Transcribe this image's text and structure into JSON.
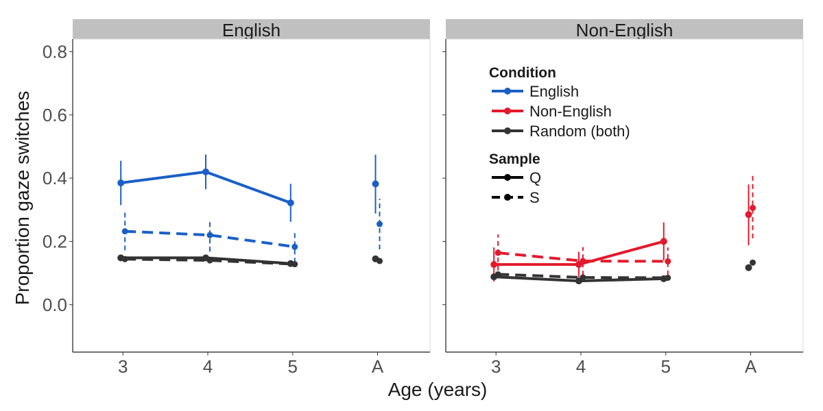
{
  "chart_data": {
    "type": "line",
    "xlabel": "Age (years)",
    "ylabel": "Proportion gaze switches",
    "x_categories": [
      "3",
      "4",
      "5",
      "A"
    ],
    "y_ticks": [
      "0.0",
      "0.2",
      "0.4",
      "0.6",
      "0.8"
    ],
    "ylim": [
      -0.15,
      0.84
    ],
    "colors": {
      "English": "#1a5fc7",
      "Non-English": "#e3192c",
      "Random (both)": "#333333"
    },
    "legend": {
      "condition_title": "Condition",
      "condition_items": [
        "English",
        "Non-English",
        "Random (both)"
      ],
      "sample_title": "Sample",
      "sample_items": [
        "Q",
        "S"
      ]
    },
    "panels": [
      {
        "title": "English",
        "series": [
          {
            "condition": "English",
            "sample": "Q",
            "points": [
              {
                "age": "3",
                "y": 0.385,
                "lo": 0.315,
                "hi": 0.455
              },
              {
                "age": "4",
                "y": 0.42,
                "lo": 0.365,
                "hi": 0.475
              },
              {
                "age": "5",
                "y": 0.322,
                "lo": 0.262,
                "hi": 0.382
              },
              {
                "age": "A",
                "y": 0.382,
                "lo": 0.288,
                "hi": 0.474
              }
            ]
          },
          {
            "condition": "English",
            "sample": "S",
            "points": [
              {
                "age": "3",
                "y": 0.232,
                "lo": 0.172,
                "hi": 0.292
              },
              {
                "age": "4",
                "y": 0.22,
                "lo": 0.168,
                "hi": 0.268
              },
              {
                "age": "5",
                "y": 0.183,
                "lo": 0.133,
                "hi": 0.233
              },
              {
                "age": "A",
                "y": 0.255,
                "lo": 0.175,
                "hi": 0.335
              }
            ]
          },
          {
            "condition": "Random (both)",
            "sample": "Q",
            "points": [
              {
                "age": "3",
                "y": 0.148
              },
              {
                "age": "4",
                "y": 0.148
              },
              {
                "age": "5",
                "y": 0.13
              },
              {
                "age": "A",
                "y": 0.145
              }
            ]
          },
          {
            "condition": "Random (both)",
            "sample": "S",
            "points": [
              {
                "age": "3",
                "y": 0.144
              },
              {
                "age": "4",
                "y": 0.14
              },
              {
                "age": "5",
                "y": 0.128
              },
              {
                "age": "A",
                "y": 0.138
              }
            ]
          }
        ]
      },
      {
        "title": "Non-English",
        "series": [
          {
            "condition": "Non-English",
            "sample": "Q",
            "points": [
              {
                "age": "3",
                "y": 0.127,
                "lo": 0.073,
                "hi": 0.181
              },
              {
                "age": "4",
                "y": 0.127,
                "lo": 0.087,
                "hi": 0.167
              },
              {
                "age": "5",
                "y": 0.2,
                "lo": 0.14,
                "hi": 0.26
              },
              {
                "age": "A",
                "y": 0.285,
                "lo": 0.188,
                "hi": 0.38
              }
            ]
          },
          {
            "condition": "Non-English",
            "sample": "S",
            "points": [
              {
                "age": "3",
                "y": 0.164,
                "lo": 0.108,
                "hi": 0.222
              },
              {
                "age": "4",
                "y": 0.138,
                "lo": 0.092,
                "hi": 0.182
              },
              {
                "age": "5",
                "y": 0.137,
                "lo": 0.093,
                "hi": 0.181
              },
              {
                "age": "A",
                "y": 0.306,
                "lo": 0.21,
                "hi": 0.408
              }
            ]
          },
          {
            "condition": "Random (both)",
            "sample": "Q",
            "points": [
              {
                "age": "3",
                "y": 0.088
              },
              {
                "age": "4",
                "y": 0.075
              },
              {
                "age": "5",
                "y": 0.082
              },
              {
                "age": "A",
                "y": 0.117
              }
            ]
          },
          {
            "condition": "Random (both)",
            "sample": "S",
            "points": [
              {
                "age": "3",
                "y": 0.096
              },
              {
                "age": "4",
                "y": 0.086
              },
              {
                "age": "5",
                "y": 0.085
              },
              {
                "age": "A",
                "y": 0.133
              }
            ]
          }
        ]
      }
    ]
  }
}
